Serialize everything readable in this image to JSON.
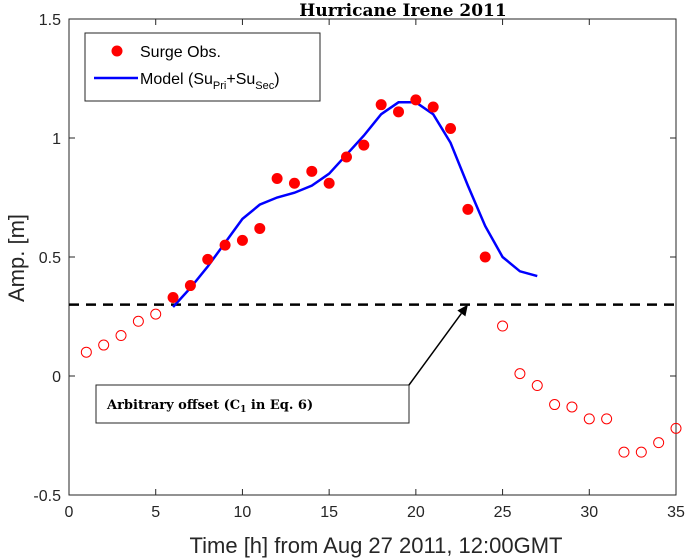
{
  "chart_data": {
    "type": "scatter",
    "title": "Hurricane Irene 2011",
    "xlabel": "Time [h] from Aug 27 2011, 12:00GMT",
    "ylabel": "Amp. [m]",
    "xlim": [
      0,
      35
    ],
    "ylim": [
      -0.5,
      1.5
    ],
    "xticks": [
      "0",
      "5",
      "10",
      "15",
      "20",
      "25",
      "30",
      "35"
    ],
    "yticks": [
      "-0.5",
      "0",
      "0.5",
      "1",
      "1.5"
    ],
    "grid": false,
    "legend_position": "top-left",
    "legend": {
      "obs_label": "Surge Obs.",
      "model_label": "Model (Su",
      "model_sub1": "Pri",
      "model_plus": "+Su",
      "model_sub2": "Sec",
      "model_close": ")"
    },
    "series": [
      {
        "name": "Surge Obs.",
        "kind": "filled-markers",
        "color": "#ff0000",
        "x": [
          6,
          7,
          8,
          9,
          10,
          11,
          12,
          13,
          14,
          15,
          16,
          17,
          18,
          19,
          20,
          21,
          22,
          23,
          24
        ],
        "y": [
          0.33,
          0.38,
          0.49,
          0.55,
          0.57,
          0.62,
          0.83,
          0.81,
          0.86,
          0.81,
          0.92,
          0.97,
          1.14,
          1.11,
          1.16,
          1.13,
          1.04,
          0.7,
          0.5
        ]
      },
      {
        "kind": "open-markers",
        "color": "#ff0000",
        "x": [
          1,
          2,
          3,
          4,
          5,
          25,
          26,
          27,
          28,
          29,
          30,
          31,
          32,
          33,
          34,
          35
        ],
        "y": [
          0.1,
          0.13,
          0.17,
          0.23,
          0.26,
          0.21,
          0.01,
          -0.04,
          -0.12,
          -0.13,
          -0.18,
          -0.18,
          -0.32,
          -0.32,
          -0.28,
          -0.22
        ]
      },
      {
        "name": "Model (SuPri+SuSec)",
        "kind": "line",
        "color": "#0000ff",
        "x": [
          6,
          7,
          8,
          9,
          10,
          11,
          12,
          13,
          14,
          15,
          16,
          17,
          18,
          19,
          20,
          21,
          22,
          23,
          24,
          25,
          26,
          27
        ],
        "y": [
          0.29,
          0.37,
          0.46,
          0.56,
          0.66,
          0.72,
          0.75,
          0.77,
          0.8,
          0.85,
          0.93,
          1.01,
          1.1,
          1.15,
          1.15,
          1.1,
          0.98,
          0.8,
          0.63,
          0.5,
          0.44,
          0.42
        ]
      }
    ],
    "reference_line": {
      "y": 0.3,
      "style": "dashed",
      "color": "#000000"
    },
    "annotation": {
      "text": "Arbitrary offset (C",
      "sub": "1",
      "text_end": " in Eq. 6)",
      "arrow_to": {
        "x": 23,
        "y": 0.3
      }
    }
  }
}
